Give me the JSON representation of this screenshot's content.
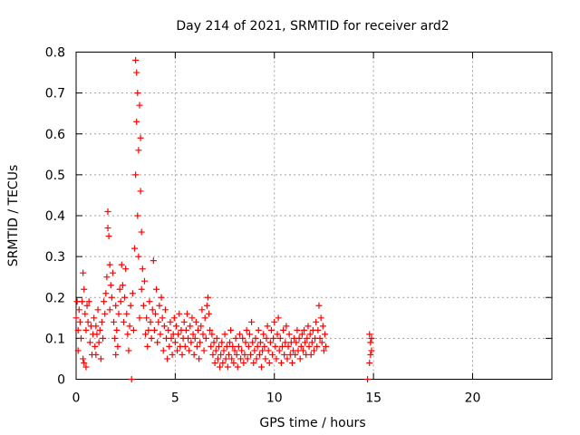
{
  "chart_data": {
    "type": "scatter",
    "title": "Day 214 of 2021, SRMTID for receiver ard2",
    "xlabel": "GPS time / hours",
    "ylabel": "SRMTID / TECUs",
    "xlim": [
      0,
      24
    ],
    "ylim": [
      0,
      0.8
    ],
    "xticks": [
      0,
      5,
      10,
      15,
      20
    ],
    "xtick_labels": [
      "0",
      "5",
      "10",
      "15",
      "20"
    ],
    "yticks": [
      0,
      0.1,
      0.2,
      0.3,
      0.4,
      0.5,
      0.6,
      0.7,
      0.8
    ],
    "ytick_labels": [
      "0",
      "0.1",
      "0.2",
      "0.3",
      "0.4",
      "0.5",
      "0.6",
      "0.7",
      "0.8"
    ],
    "grid": true,
    "marker": "+",
    "series": [
      {
        "name": "ard2",
        "color": "#ff0000",
        "points": [
          [
            0.0,
            0.15
          ],
          [
            0.05,
            0.19
          ],
          [
            0.1,
            0.12
          ],
          [
            0.1,
            0.07
          ],
          [
            0.15,
            0.17
          ],
          [
            0.2,
            0.14
          ],
          [
            0.25,
            0.1
          ],
          [
            0.3,
            0.19
          ],
          [
            0.35,
            0.26
          ],
          [
            0.35,
            0.05
          ],
          [
            0.4,
            0.22
          ],
          [
            0.4,
            0.04
          ],
          [
            0.45,
            0.16
          ],
          [
            0.5,
            0.03
          ],
          [
            0.5,
            0.12
          ],
          [
            0.55,
            0.18
          ],
          [
            0.6,
            0.14
          ],
          [
            0.65,
            0.19
          ],
          [
            0.7,
            0.09
          ],
          [
            0.75,
            0.13
          ],
          [
            0.8,
            0.06
          ],
          [
            0.85,
            0.11
          ],
          [
            0.9,
            0.15
          ],
          [
            0.95,
            0.08
          ],
          [
            1.0,
            0.13
          ],
          [
            1.0,
            0.06
          ],
          [
            1.05,
            0.11
          ],
          [
            1.1,
            0.17
          ],
          [
            1.15,
            0.09
          ],
          [
            1.2,
            0.12
          ],
          [
            1.25,
            0.05
          ],
          [
            1.3,
            0.14
          ],
          [
            1.35,
            0.1
          ],
          [
            1.4,
            0.19
          ],
          [
            1.45,
            0.16
          ],
          [
            1.5,
            0.21
          ],
          [
            1.55,
            0.25
          ],
          [
            1.6,
            0.41
          ],
          [
            1.6,
            0.37
          ],
          [
            1.65,
            0.35
          ],
          [
            1.7,
            0.28
          ],
          [
            1.7,
            0.17
          ],
          [
            1.75,
            0.23
          ],
          [
            1.8,
            0.2
          ],
          [
            1.85,
            0.26
          ],
          [
            1.9,
            0.14
          ],
          [
            1.95,
            0.1
          ],
          [
            2.0,
            0.06
          ],
          [
            2.0,
            0.18
          ],
          [
            2.05,
            0.12
          ],
          [
            2.1,
            0.08
          ],
          [
            2.15,
            0.16
          ],
          [
            2.2,
            0.22
          ],
          [
            2.25,
            0.19
          ],
          [
            2.3,
            0.28
          ],
          [
            2.35,
            0.23
          ],
          [
            2.4,
            0.14
          ],
          [
            2.45,
            0.2
          ],
          [
            2.5,
            0.27
          ],
          [
            2.55,
            0.16
          ],
          [
            2.6,
            0.11
          ],
          [
            2.65,
            0.07
          ],
          [
            2.7,
            0.13
          ],
          [
            2.75,
            0.18
          ],
          [
            2.8,
            0.0
          ],
          [
            2.85,
            0.21
          ],
          [
            2.9,
            0.12
          ],
          [
            2.95,
            0.32
          ],
          [
            3.0,
            0.5
          ],
          [
            3.0,
            0.78
          ],
          [
            3.05,
            0.63
          ],
          [
            3.05,
            0.75
          ],
          [
            3.1,
            0.7
          ],
          [
            3.1,
            0.4
          ],
          [
            3.15,
            0.56
          ],
          [
            3.15,
            0.3
          ],
          [
            3.2,
            0.67
          ],
          [
            3.2,
            0.15
          ],
          [
            3.25,
            0.46
          ],
          [
            3.25,
            0.59
          ],
          [
            3.3,
            0.36
          ],
          [
            3.3,
            0.22
          ],
          [
            3.35,
            0.27
          ],
          [
            3.4,
            0.18
          ],
          [
            3.45,
            0.24
          ],
          [
            3.5,
            0.11
          ],
          [
            3.55,
            0.15
          ],
          [
            3.6,
            0.08
          ],
          [
            3.65,
            0.12
          ],
          [
            3.7,
            0.19
          ],
          [
            3.75,
            0.14
          ],
          [
            3.8,
            0.1
          ],
          [
            3.85,
            0.17
          ],
          [
            3.9,
            0.29
          ],
          [
            3.95,
            0.12
          ],
          [
            4.0,
            0.16
          ],
          [
            4.05,
            0.22
          ],
          [
            4.1,
            0.09
          ],
          [
            4.15,
            0.14
          ],
          [
            4.2,
            0.18
          ],
          [
            4.25,
            0.11
          ],
          [
            4.3,
            0.2
          ],
          [
            4.35,
            0.15
          ],
          [
            4.4,
            0.07
          ],
          [
            4.45,
            0.13
          ],
          [
            4.5,
            0.17
          ],
          [
            4.55,
            0.1
          ],
          [
            4.6,
            0.05
          ],
          [
            4.65,
            0.12
          ],
          [
            4.7,
            0.08
          ],
          [
            4.75,
            0.14
          ],
          [
            4.8,
            0.1
          ],
          [
            4.85,
            0.06
          ],
          [
            4.9,
            0.11
          ],
          [
            4.95,
            0.15
          ],
          [
            5.0,
            0.09
          ],
          [
            5.05,
            0.13
          ],
          [
            5.1,
            0.07
          ],
          [
            5.15,
            0.11
          ],
          [
            5.2,
            0.16
          ],
          [
            5.25,
            0.08
          ],
          [
            5.3,
            0.12
          ],
          [
            5.35,
            0.06
          ],
          [
            5.4,
            0.1
          ],
          [
            5.45,
            0.14
          ],
          [
            5.5,
            0.08
          ],
          [
            5.55,
            0.12
          ],
          [
            5.6,
            0.16
          ],
          [
            5.65,
            0.1
          ],
          [
            5.7,
            0.07
          ],
          [
            5.75,
            0.13
          ],
          [
            5.8,
            0.09
          ],
          [
            5.85,
            0.15
          ],
          [
            5.9,
            0.11
          ],
          [
            5.95,
            0.06
          ],
          [
            6.0,
            0.1
          ],
          [
            6.05,
            0.14
          ],
          [
            6.1,
            0.08
          ],
          [
            6.15,
            0.12
          ],
          [
            6.2,
            0.05
          ],
          [
            6.25,
            0.09
          ],
          [
            6.3,
            0.13
          ],
          [
            6.35,
            0.17
          ],
          [
            6.4,
            0.11
          ],
          [
            6.45,
            0.07
          ],
          [
            6.5,
            0.15
          ],
          [
            6.55,
            0.1
          ],
          [
            6.6,
            0.18
          ],
          [
            6.65,
            0.2
          ],
          [
            6.7,
            0.16
          ],
          [
            6.75,
            0.12
          ],
          [
            6.8,
            0.08
          ],
          [
            6.85,
            0.11
          ],
          [
            6.9,
            0.06
          ],
          [
            6.95,
            0.09
          ],
          [
            7.0,
            0.04
          ],
          [
            7.05,
            0.07
          ],
          [
            7.1,
            0.1
          ],
          [
            7.15,
            0.05
          ],
          [
            7.2,
            0.08
          ],
          [
            7.25,
            0.03
          ],
          [
            7.3,
            0.06
          ],
          [
            7.35,
            0.09
          ],
          [
            7.4,
            0.04
          ],
          [
            7.45,
            0.07
          ],
          [
            7.5,
            0.11
          ],
          [
            7.55,
            0.05
          ],
          [
            7.6,
            0.08
          ],
          [
            7.65,
            0.03
          ],
          [
            7.7,
            0.06
          ],
          [
            7.75,
            0.09
          ],
          [
            7.8,
            0.12
          ],
          [
            7.85,
            0.05
          ],
          [
            7.9,
            0.08
          ],
          [
            7.95,
            0.04
          ],
          [
            8.0,
            0.07
          ],
          [
            8.05,
            0.1
          ],
          [
            8.1,
            0.06
          ],
          [
            8.15,
            0.03
          ],
          [
            8.2,
            0.08
          ],
          [
            8.25,
            0.11
          ],
          [
            8.3,
            0.05
          ],
          [
            8.35,
            0.07
          ],
          [
            8.4,
            0.1
          ],
          [
            8.45,
            0.04
          ],
          [
            8.5,
            0.06
          ],
          [
            8.55,
            0.09
          ],
          [
            8.6,
            0.12
          ],
          [
            8.65,
            0.05
          ],
          [
            8.7,
            0.08
          ],
          [
            8.75,
            0.11
          ],
          [
            8.8,
            0.06
          ],
          [
            8.85,
            0.14
          ],
          [
            8.9,
            0.09
          ],
          [
            8.95,
            0.04
          ],
          [
            9.0,
            0.07
          ],
          [
            9.05,
            0.1
          ],
          [
            9.1,
            0.05
          ],
          [
            9.15,
            0.08
          ],
          [
            9.2,
            0.12
          ],
          [
            9.25,
            0.06
          ],
          [
            9.3,
            0.09
          ],
          [
            9.35,
            0.03
          ],
          [
            9.4,
            0.07
          ],
          [
            9.45,
            0.11
          ],
          [
            9.5,
            0.08
          ],
          [
            9.55,
            0.05
          ],
          [
            9.6,
            0.1
          ],
          [
            9.65,
            0.13
          ],
          [
            9.7,
            0.07
          ],
          [
            9.75,
            0.04
          ],
          [
            9.8,
            0.09
          ],
          [
            9.85,
            0.12
          ],
          [
            9.9,
            0.06
          ],
          [
            9.95,
            0.1
          ],
          [
            10.0,
            0.14
          ],
          [
            10.05,
            0.08
          ],
          [
            10.1,
            0.05
          ],
          [
            10.15,
            0.11
          ],
          [
            10.2,
            0.15
          ],
          [
            10.25,
            0.07
          ],
          [
            10.3,
            0.1
          ],
          [
            10.35,
            0.04
          ],
          [
            10.4,
            0.08
          ],
          [
            10.45,
            0.12
          ],
          [
            10.5,
            0.06
          ],
          [
            10.55,
            0.09
          ],
          [
            10.6,
            0.13
          ],
          [
            10.65,
            0.05
          ],
          [
            10.7,
            0.08
          ],
          [
            10.75,
            0.11
          ],
          [
            10.8,
            0.06
          ],
          [
            10.85,
            0.09
          ],
          [
            10.9,
            0.04
          ],
          [
            10.95,
            0.07
          ],
          [
            11.0,
            0.1
          ],
          [
            11.05,
            0.06
          ],
          [
            11.1,
            0.09
          ],
          [
            11.15,
            0.12
          ],
          [
            11.2,
            0.07
          ],
          [
            11.25,
            0.1
          ],
          [
            11.3,
            0.05
          ],
          [
            11.35,
            0.08
          ],
          [
            11.4,
            0.11
          ],
          [
            11.45,
            0.07
          ],
          [
            11.5,
            0.12
          ],
          [
            11.55,
            0.09
          ],
          [
            11.6,
            0.06
          ],
          [
            11.65,
            0.1
          ],
          [
            11.7,
            0.13
          ],
          [
            11.75,
            0.08
          ],
          [
            11.8,
            0.11
          ],
          [
            11.85,
            0.06
          ],
          [
            11.9,
            0.09
          ],
          [
            11.95,
            0.12
          ],
          [
            12.0,
            0.07
          ],
          [
            12.05,
            0.1
          ],
          [
            12.1,
            0.14
          ],
          [
            12.15,
            0.08
          ],
          [
            12.2,
            0.12
          ],
          [
            12.25,
            0.18
          ],
          [
            12.3,
            0.1
          ],
          [
            12.35,
            0.15
          ],
          [
            12.4,
            0.09
          ],
          [
            12.45,
            0.13
          ],
          [
            12.5,
            0.07
          ],
          [
            12.55,
            0.11
          ],
          [
            12.6,
            0.08
          ],
          [
            14.7,
            0.0
          ],
          [
            14.8,
            0.11
          ],
          [
            14.8,
            0.04
          ],
          [
            14.85,
            0.09
          ],
          [
            14.85,
            0.06
          ],
          [
            14.9,
            0.1
          ],
          [
            14.9,
            0.07
          ]
        ]
      }
    ]
  }
}
